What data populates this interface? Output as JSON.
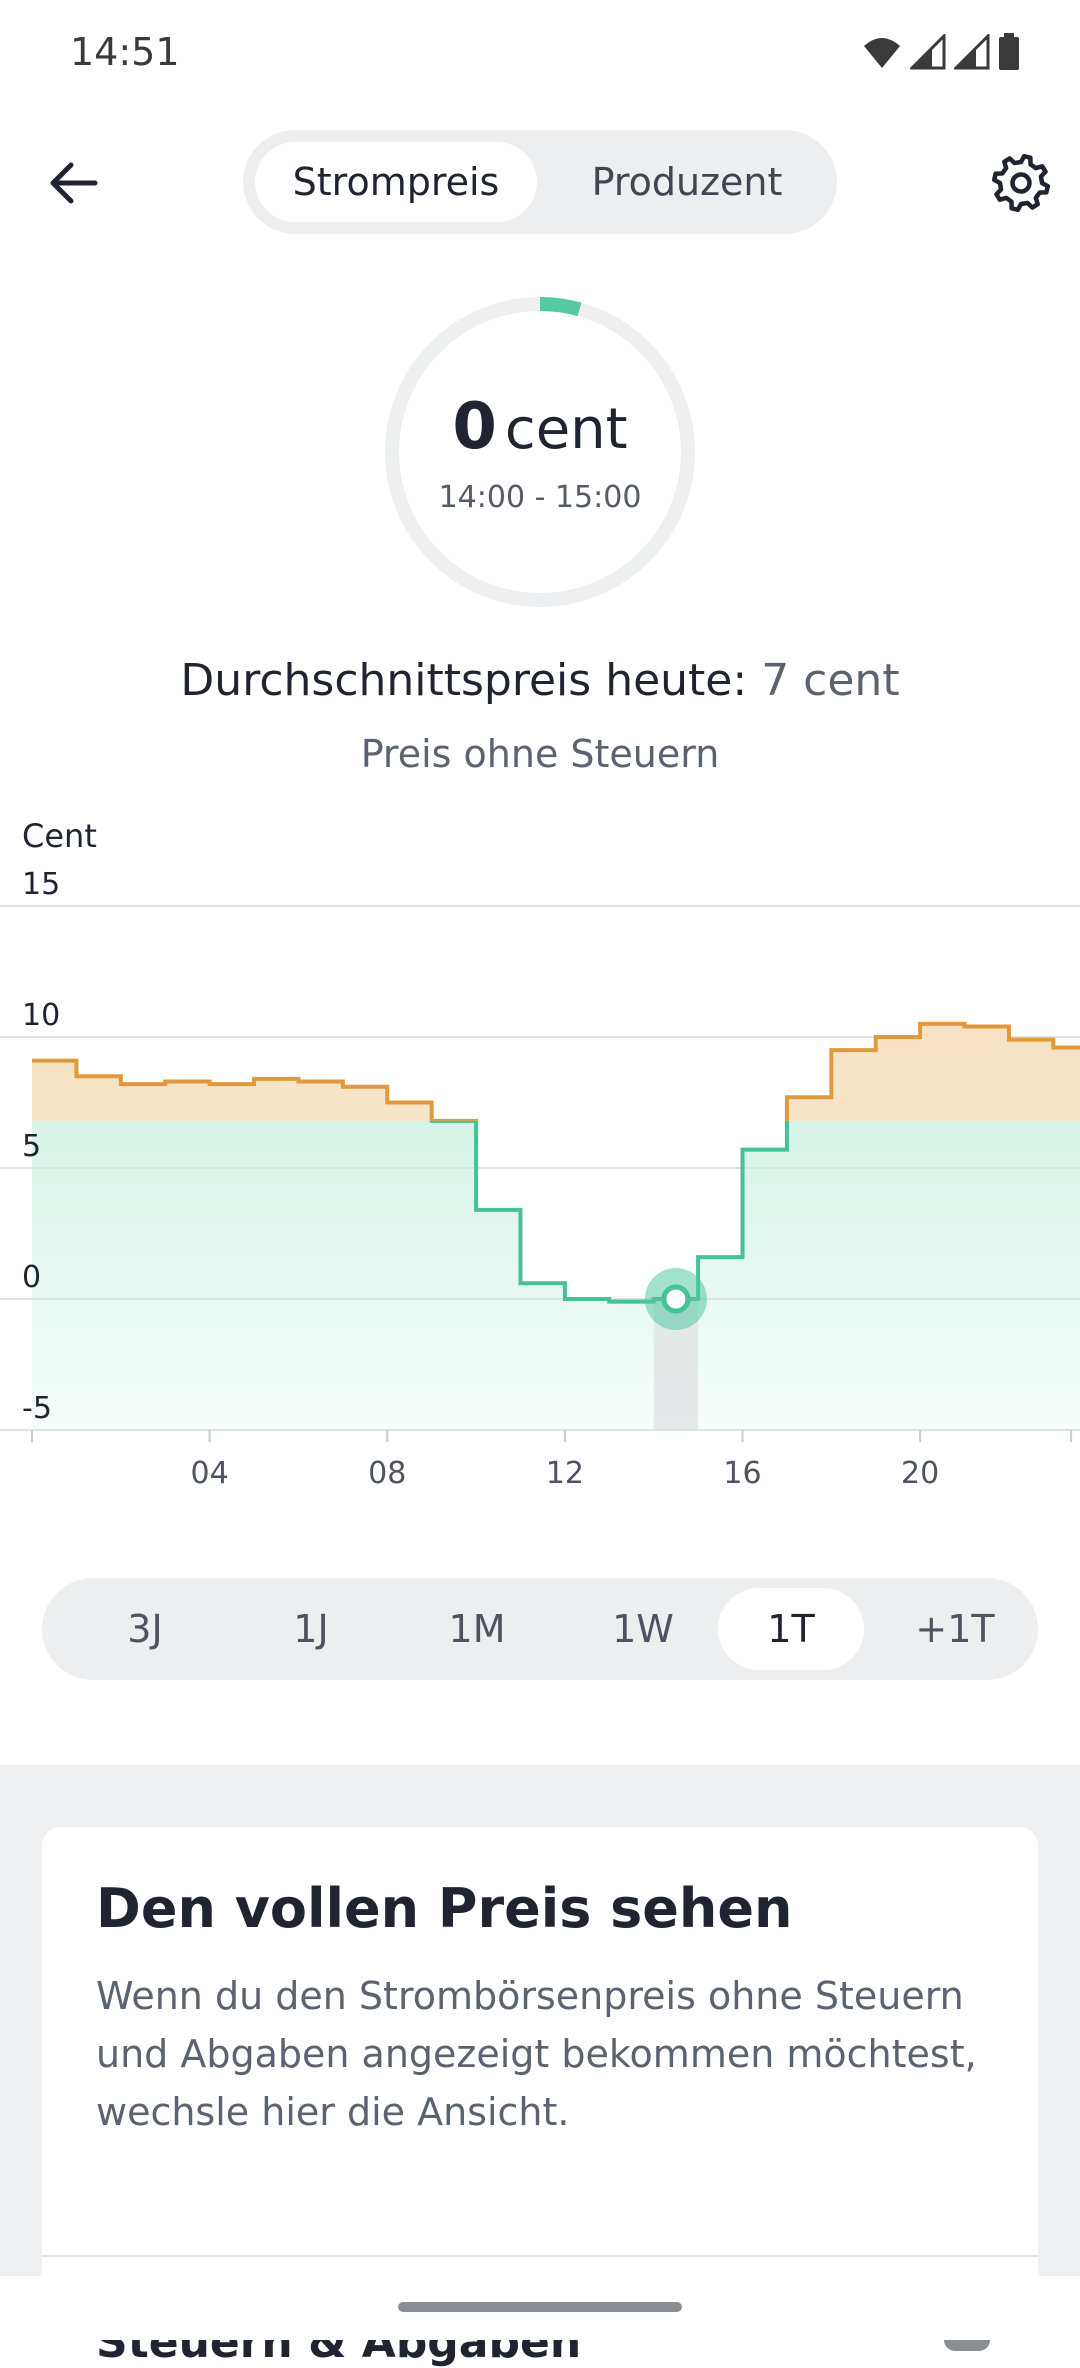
{
  "status_bar": {
    "time": "14:51",
    "icons": [
      "wifi-icon",
      "signal-icon",
      "signal-icon",
      "battery-icon"
    ]
  },
  "header": {
    "back_icon": "arrow-left-icon",
    "settings_icon": "gear-icon",
    "tabs": [
      {
        "label": "Strompreis",
        "active": true
      },
      {
        "label": "Produzent",
        "active": false
      }
    ]
  },
  "gauge": {
    "value": "0",
    "unit": "cent",
    "time_range": "14:00 - 15:00",
    "accent_color": "#55c9a2"
  },
  "average": {
    "label": "Durchschnittspreis heute:",
    "value": "7 cent"
  },
  "subtitle": "Preis ohne Steuern",
  "chart_data": {
    "type": "line",
    "step": true,
    "ylabel": "Cent",
    "ylim": [
      -5,
      15
    ],
    "yticks": [
      "15",
      "10",
      "5",
      "0",
      "-5"
    ],
    "xlim": [
      0,
      23.6
    ],
    "xticks": [
      "04",
      "08",
      "12",
      "16",
      "20"
    ],
    "x": [
      0,
      1,
      2,
      3,
      4,
      5,
      6,
      7,
      8,
      9,
      10,
      11,
      12,
      13,
      14,
      15,
      16,
      17,
      18,
      19,
      20,
      21,
      22,
      23
    ],
    "values": [
      9.1,
      8.5,
      8.2,
      8.3,
      8.2,
      8.4,
      8.3,
      8.1,
      7.5,
      6.8,
      3.4,
      0.6,
      0.0,
      -0.1,
      0.0,
      1.6,
      5.7,
      7.7,
      9.5,
      10.0,
      10.5,
      10.4,
      9.9,
      9.6
    ],
    "threshold": 6.8,
    "above_color": "#e09a3c",
    "below_color": "#45c297",
    "highlight_x": 14.5,
    "highlight_value": 0.0,
    "grid": true
  },
  "ranges": [
    {
      "label": "3J",
      "active": false
    },
    {
      "label": "1J",
      "active": false
    },
    {
      "label": "1M",
      "active": false
    },
    {
      "label": "1W",
      "active": false
    },
    {
      "label": "1T",
      "active": true
    },
    {
      "label": "+1T",
      "active": false
    }
  ],
  "card": {
    "title": "Den vollen Preis sehen",
    "text": "Wenn du den Strombörsenpreis ohne Steuern und Abgaben angezeigt bekommen möchtest, wechsle hier die Ansicht.",
    "row_label": "Steuern & Abgaben",
    "row_icon": "toggle-icon"
  }
}
